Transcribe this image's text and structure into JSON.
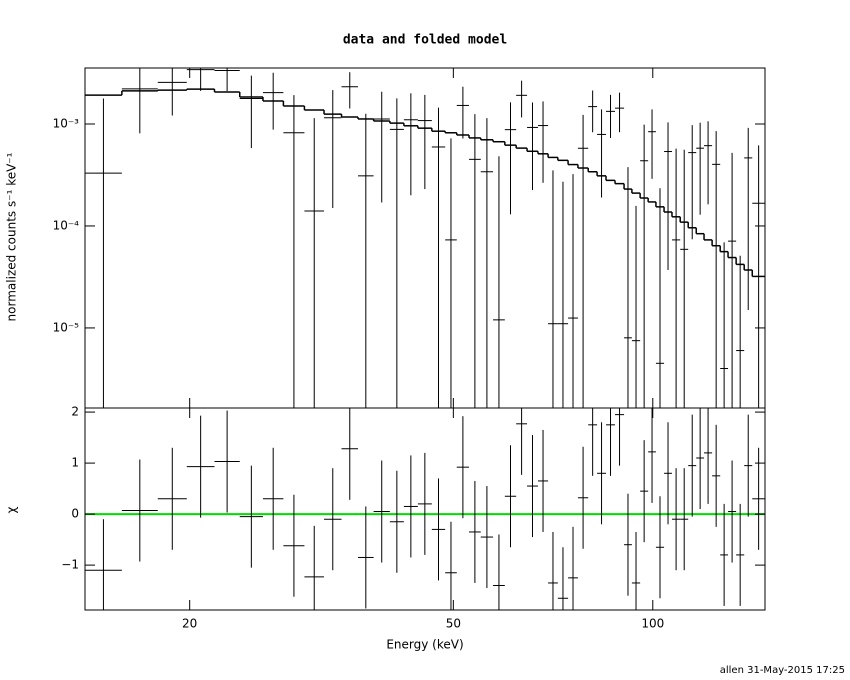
{
  "chart_data": {
    "type": "spectrum",
    "title": "data and folded model",
    "xlabel": "Energy (keV)",
    "ylabel": "normalized counts s⁻¹ keV⁻¹",
    "ylabel_residual": "χ",
    "footer": "allen 31-May-2015 17:25",
    "xscale": "log",
    "yscale": "log",
    "xlim": [
      13.9,
      147.7
    ],
    "xticks": [
      20,
      50,
      100
    ],
    "ylim": [
      1.64e-06,
      0.00354
    ],
    "yticks": [
      {
        "value": 0.001,
        "label": "10⁻³"
      },
      {
        "value": 0.0001,
        "label": "10⁻⁴"
      },
      {
        "value": 1e-05,
        "label": "10⁻⁵"
      }
    ],
    "bins": [
      13.9,
      15.8,
      17.9,
      19.8,
      21.8,
      23.8,
      25.8,
      27.7,
      29.8,
      31.9,
      33.9,
      35.9,
      37.9,
      40.1,
      42.1,
      44.2,
      46.4,
      48.6,
      50.6,
      52.8,
      55.0,
      57.4,
      59.8,
      62.2,
      64.6,
      67.1,
      69.5,
      71.9,
      74.5,
      77.1,
      79.9,
      82.4,
      85.0,
      87.7,
      90.5,
      93.0,
      95.7,
      98.4,
      101.1,
      104.0,
      106.9,
      110.0,
      113.1,
      116.3,
      119.5,
      122.9,
      126.4,
      129.9,
      133.6,
      137.4,
      141.3,
      147.7
    ],
    "data": {
      "color": "#000000",
      "values": [
        0.00033,
        0.00221,
        0.00256,
        0.00341,
        0.00335,
        0.00178,
        0.00203,
        0.00082,
        0.00014,
        0.00115,
        0.00232,
        0.00031,
        0.00112,
        0.000885,
        0.0011,
        0.00108,
        0.000595,
        7.3e-05,
        0.00152,
        0.00045,
        0.00034,
        1.2e-05,
        0.00088,
        0.00191,
        0.000925,
        0.000965,
        1.1e-05,
        1.1e-05,
        1.25e-05,
        0.000578,
        0.00148,
        0.00079,
        0.00133,
        0.00143,
        8e-06,
        7.5e-06,
        0.000436,
        0.00084,
        4.5e-06,
        0.000537,
        7.3e-05,
        5.9e-05,
        0.000524,
        0.000579,
        0.000613,
        0.000402,
        4e-06,
        7.1e-05,
        6e-06,
        0.000465,
        0.000167
      ],
      "errors": [
        0.00145,
        0.0014,
        0.00135,
        0.0013,
        0.00125,
        0.0012,
        0.00115,
        0.0011,
        0.001,
        0.001,
        0.0009,
        0.00095,
        0.00095,
        0.0009,
        0.0009,
        0.00085,
        0.00085,
        0.00065,
        0.0008,
        0.0008,
        0.0008,
        0.00047,
        0.00075,
        0.00075,
        0.0007,
        0.0007,
        0.00034,
        0.00026,
        0.00031,
        0.00065,
        0.00065,
        0.0006,
        0.0006,
        0.0006,
        0.00037,
        0.00015,
        0.00055,
        0.00055,
        0.00023,
        0.0005,
        0.0005,
        0.0005,
        0.00045,
        0.00045,
        0.00045,
        0.00045,
        6.5e-05,
        0.00045,
        4.5e-05,
        0.00045,
        0.00045
      ]
    },
    "model": {
      "color": "#000000",
      "values": [
        0.00192,
        0.00211,
        0.00215,
        0.0022,
        0.00206,
        0.00184,
        0.00168,
        0.0015,
        0.00137,
        0.00125,
        0.00117,
        0.00112,
        0.00107,
        0.00102,
        0.00096,
        0.00091,
        0.00085,
        0.00082,
        0.00078,
        0.00073,
        0.0007,
        0.00067,
        0.00062,
        0.00058,
        0.00054,
        0.00051,
        0.00047,
        0.00044,
        0.0004,
        0.00037,
        0.00034,
        0.00031,
        0.00028,
        0.00026,
        0.00023,
        0.00021,
        0.000188,
        0.000172,
        0.000154,
        0.000137,
        0.000123,
        0.000109,
        9.6e-05,
        8.4e-05,
        7.3e-05,
        6.4e-05,
        5.6e-05,
        4.9e-05,
        4.2e-05,
        3.7e-05,
        3.2e-05
      ]
    },
    "residuals": {
      "color": "#000000",
      "values": [
        -1.1,
        0.07,
        0.3,
        0.93,
        1.03,
        -0.05,
        0.3,
        -0.62,
        -1.23,
        -0.1,
        1.28,
        -0.85,
        0.05,
        -0.15,
        0.15,
        0.2,
        -0.3,
        -1.15,
        0.92,
        -0.35,
        -0.45,
        -1.4,
        0.35,
        1.77,
        0.55,
        0.65,
        -1.35,
        -1.65,
        -1.25,
        0.32,
        1.75,
        0.8,
        1.75,
        1.95,
        -0.6,
        -1.35,
        0.45,
        1.22,
        -0.65,
        0.8,
        -0.1,
        -0.1,
        0.95,
        1.1,
        1.2,
        0.75,
        -0.8,
        0.05,
        -0.8,
        0.95,
        0.3
      ],
      "error": 1,
      "ylim": [
        -1.88,
        2.08
      ],
      "yticks": [
        2,
        1,
        0,
        {
          "value": -1,
          "label": "−1"
        }
      ],
      "reference_line": 0,
      "reference_color": "#00dd00"
    }
  }
}
